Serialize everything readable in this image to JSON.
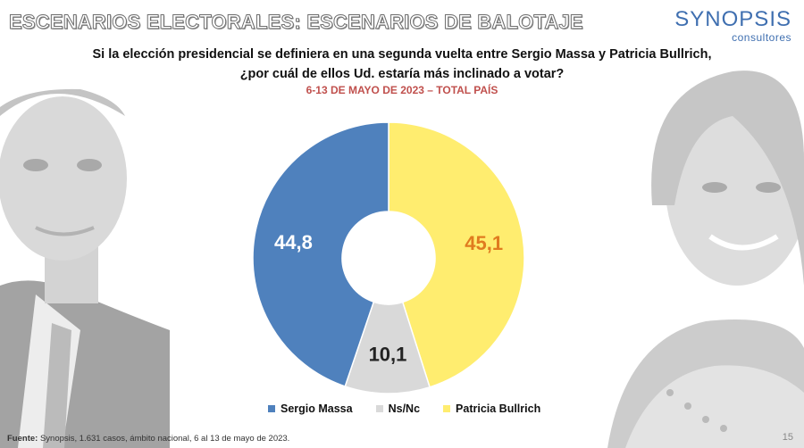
{
  "header": {
    "title": "ESCENARIOS ELECTORALES: ESCENARIOS DE BALOTAJE"
  },
  "logo": {
    "main": "SYNOPSIS",
    "sub": "consultores"
  },
  "question": {
    "line1": "Si la elección presidencial se definiera en una segunda vuelta entre Sergio Massa y Patricia Bullrich,",
    "line2": "¿por cuál de ellos Ud. estaría más inclinado a votar?"
  },
  "period": "6-13 DE MAYO DE 2023 – TOTAL PAÍS",
  "chart_data": {
    "type": "pie",
    "subtype": "donut",
    "title": "",
    "slices": [
      {
        "name": "Patricia Bullrich",
        "value": 45.1,
        "label": "45,1",
        "color": "#ffed6f",
        "label_color": "#e07b1f"
      },
      {
        "name": "Ns/Nc",
        "value": 10.1,
        "label": "10,1",
        "color": "#d9d9d9",
        "label_color": "#222222"
      },
      {
        "name": "Sergio Massa",
        "value": 44.8,
        "label": "44,8",
        "color": "#4f81bd",
        "label_color": "#ffffff"
      }
    ],
    "legend": {
      "position": "bottom",
      "items": [
        {
          "name": "Sergio Massa",
          "color": "#4f81bd"
        },
        {
          "name": "Ns/Nc",
          "color": "#d9d9d9"
        },
        {
          "name": "Patricia Bullrich",
          "color": "#ffed6f"
        }
      ]
    }
  },
  "footer": {
    "label": "Fuente:",
    "text": " Synopsis, 1.631 casos, ámbito nacional, 6 al 13 de mayo de 2023."
  },
  "page_number": "15"
}
